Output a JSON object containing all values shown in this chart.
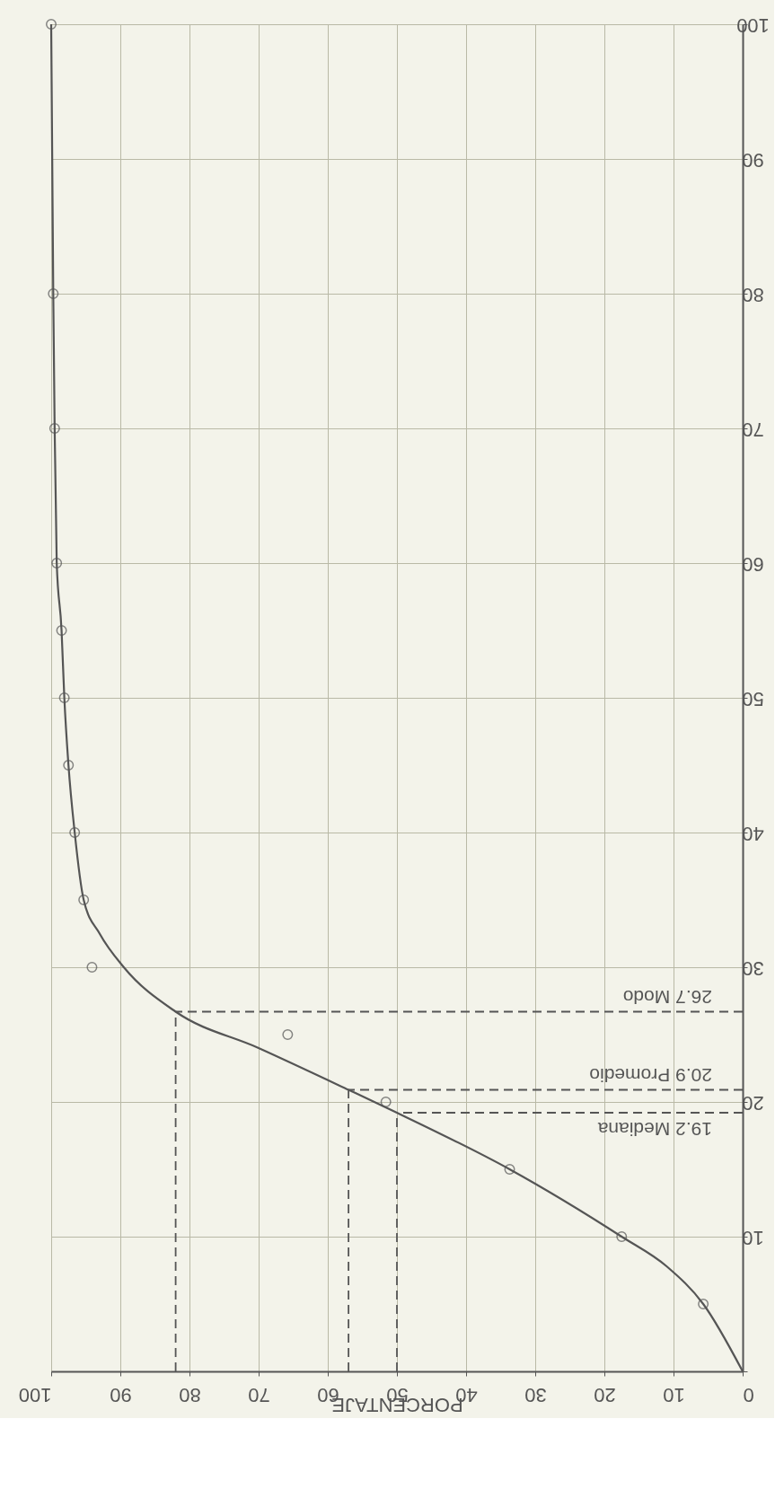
{
  "chart_data": {
    "type": "scatter",
    "xlabel": "PORCENTAJE",
    "xlim": [
      100,
      0
    ],
    "xticks": [
      0,
      10,
      20,
      30,
      40,
      50,
      60,
      70,
      80,
      90,
      100
    ],
    "ylim": [
      0,
      100
    ],
    "yticks": [
      {
        "value": 0,
        "label": null
      },
      10,
      20,
      30,
      40,
      50,
      60,
      70,
      80,
      90,
      100
    ],
    "grid": true,
    "marker": "circle",
    "series": [
      {
        "color": "#555555",
        "x": [
          5.7,
          17.5,
          33.7,
          51.6,
          65.8,
          94.1,
          95.3,
          96.6,
          97.5,
          98.1,
          98.5,
          99.2,
          99.5,
          99.7,
          100
        ],
        "values": [
          5,
          10,
          15,
          20,
          25,
          30,
          35,
          40,
          45,
          50,
          55,
          60,
          70,
          80,
          100
        ]
      },
      {
        "type": "line",
        "color": "#555555",
        "marker": "none",
        "line_style": "solid",
        "x": [
          0,
          5.7,
          11,
          17.5,
          33.7,
          50,
          57,
          70,
          82,
          89.5,
          93,
          95.3,
          96.6,
          97.5,
          98.1,
          98.5,
          99.2,
          99.5,
          99.7,
          100
        ],
        "values": [
          0,
          5,
          7.8,
          10,
          15,
          19.2,
          20.9,
          24,
          26.7,
          30,
          32.5,
          35,
          40,
          45,
          50,
          55,
          60,
          70,
          80,
          100
        ]
      }
    ],
    "ref_lines": [
      {
        "axis": "y",
        "value": 19.2,
        "label": "19.2 Mediana",
        "line_style": "dashed",
        "color": "#555555"
      },
      {
        "axis": "y",
        "value": 20.9,
        "label": "20.9 Promedio",
        "line_style": "dashed",
        "color": "#555555"
      },
      {
        "axis": "y",
        "value": 26.7,
        "label": "26.7 Modo",
        "line_style": "dashed",
        "color": "#555555"
      },
      {
        "axis": "x",
        "value": 50,
        "line_style": "dashed",
        "color": "#555555"
      },
      {
        "axis": "x",
        "value": 57,
        "line_style": "dashed",
        "color": "#555555"
      },
      {
        "axis": "x",
        "value": 82,
        "line_style": "dashed",
        "color": "#555555"
      }
    ]
  }
}
